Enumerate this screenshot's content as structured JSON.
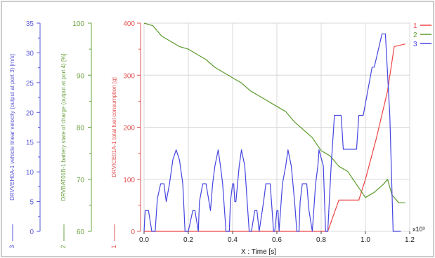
{
  "chart_data": {
    "type": "line",
    "xlabel": "X : Time [s]",
    "x_exponent_label": "x10³",
    "xlim": [
      0,
      1.2
    ],
    "x_ticks": [
      "0.0",
      "0.2",
      "0.4",
      "0.6",
      "0.8",
      "1.0",
      "1.2"
    ],
    "grid": true,
    "legend_position": "right",
    "axes": [
      {
        "id": "velocity",
        "label": "DRVVEH0A-1 vehicle linear velocity (output at port 3) [m/s]",
        "index_label": "3",
        "color": "#5a5ad6",
        "ylim": [
          0,
          35
        ],
        "ticks": [
          "0",
          "5",
          "10",
          "15",
          "20",
          "25",
          "30",
          "35"
        ]
      },
      {
        "id": "soc",
        "label": "DRVBAT01B-1 battery state of charge (output at port 4) [%]",
        "index_label": "2",
        "color": "#6aa040",
        "ylim": [
          60,
          100
        ],
        "ticks": [
          "60",
          "70",
          "80",
          "90",
          "100"
        ]
      },
      {
        "id": "fuel",
        "label": "DRVICE01A-1 total fuel consumption [g]",
        "index_label": "1",
        "color": "#e05050",
        "ylim": [
          0,
          400
        ],
        "ticks": [
          "0",
          "100",
          "200",
          "300",
          "400"
        ]
      }
    ],
    "series": [
      {
        "name": "1",
        "axis": "fuel",
        "color": "#ee4444",
        "x": [
          0,
          0.83,
          0.88,
          0.97,
          1.0,
          1.05,
          1.1,
          1.13,
          1.18
        ],
        "y": [
          0,
          0,
          60,
          60,
          100,
          180,
          270,
          355,
          360
        ]
      },
      {
        "name": "2",
        "axis": "soc",
        "color": "#5a9a2a",
        "x": [
          0,
          0.04,
          0.08,
          0.12,
          0.16,
          0.2,
          0.24,
          0.28,
          0.32,
          0.36,
          0.4,
          0.44,
          0.48,
          0.52,
          0.56,
          0.6,
          0.64,
          0.68,
          0.72,
          0.76,
          0.8,
          0.84,
          0.88,
          0.92,
          0.96,
          1.0,
          1.04,
          1.08,
          1.1,
          1.12,
          1.15,
          1.18
        ],
        "y": [
          100,
          99.5,
          97.5,
          96.5,
          95.5,
          95,
          94,
          93,
          91.5,
          90.5,
          89.5,
          88.5,
          87,
          86,
          85,
          84,
          83,
          81,
          79.5,
          78,
          75.5,
          74.5,
          72.5,
          71.5,
          69,
          66.5,
          67.5,
          69,
          70,
          67,
          65.5,
          65.5
        ]
      },
      {
        "name": "3",
        "axis": "velocity",
        "color": "#4545e0",
        "x": [
          0,
          0.005,
          0.02,
          0.035,
          0.05,
          0.06,
          0.075,
          0.09,
          0.1,
          0.115,
          0.13,
          0.145,
          0.16,
          0.175,
          0.185,
          0.2,
          0.22,
          0.23,
          0.245,
          0.25,
          0.265,
          0.28,
          0.3,
          0.31,
          0.32,
          0.335,
          0.345,
          0.355,
          0.37,
          0.385,
          0.39,
          0.4,
          0.405,
          0.41,
          0.415,
          0.43,
          0.44,
          0.455,
          0.475,
          0.485,
          0.5,
          0.51,
          0.52,
          0.54,
          0.55,
          0.57,
          0.585,
          0.59,
          0.6,
          0.605,
          0.61,
          0.625,
          0.64,
          0.65,
          0.665,
          0.68,
          0.69,
          0.7,
          0.705,
          0.715,
          0.735,
          0.745,
          0.76,
          0.775,
          0.785,
          0.79,
          0.81,
          0.82,
          0.83,
          0.845,
          0.86,
          0.87,
          0.89,
          0.9,
          0.91,
          0.96,
          0.97,
          0.99,
          1.03,
          1.04,
          1.075,
          1.09,
          1.11,
          1.125,
          1.145,
          1.16
        ],
        "y": [
          0,
          3.5,
          3.5,
          0,
          0,
          5.5,
          8,
          8,
          5,
          8,
          12,
          13.7,
          12,
          8,
          0,
          0,
          3.5,
          3.5,
          0,
          5,
          8,
          8,
          3.5,
          8,
          11,
          13.7,
          11,
          8,
          0,
          0,
          5,
          8,
          8,
          5,
          5,
          11,
          13.7,
          11,
          0,
          0,
          3.5,
          3.5,
          0,
          5,
          8,
          8,
          0,
          0,
          3.5,
          3.5,
          0,
          8,
          11,
          13.7,
          11,
          5,
          0,
          0,
          5,
          8,
          8,
          3.5,
          0,
          8,
          11,
          13.7,
          11,
          0,
          0,
          11,
          19.5,
          19.5,
          19.5,
          13.8,
          13.8,
          13.8,
          19.5,
          19.5,
          27.6,
          27.6,
          33.2,
          33.2,
          19.5,
          0,
          0,
          0
        ]
      }
    ]
  }
}
